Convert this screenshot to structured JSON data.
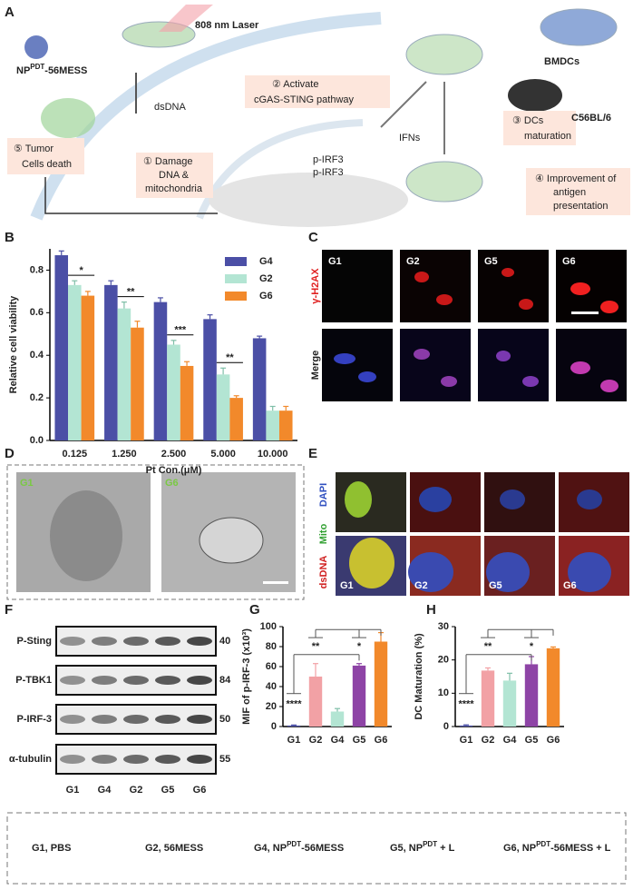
{
  "panel_labels": [
    "A",
    "B",
    "C",
    "D",
    "E",
    "F",
    "G",
    "H"
  ],
  "schematic": {
    "laser": "808 nm Laser",
    "np": {
      "base": "NP",
      "sup": "PDT",
      "tail": "-56MESS"
    },
    "dsdna": "dsDNA",
    "activate": [
      "② Activate",
      "cGAS-STING pathway"
    ],
    "bmdcs": "BMDCs",
    "mouse": "C56BL/6",
    "ifns": "IFNs",
    "maturation": [
      "③ DCs",
      "maturation"
    ],
    "death": [
      "⑤ Tumor",
      "Cells death"
    ],
    "damage": [
      "① Damage",
      "DNA &",
      "mitochondria"
    ],
    "pirf3": [
      "p-IRF3",
      "p-IRF3"
    ],
    "antigen": [
      "④ Improvement of",
      "antigen",
      "presentation"
    ]
  },
  "microscopy_c": {
    "columns": [
      "G1",
      "G2",
      "G5",
      "G6"
    ],
    "rows": [
      "γ-H2AX",
      "Merge"
    ]
  },
  "tem_d": {
    "labels": [
      "G1",
      "G6"
    ]
  },
  "confocal_e": {
    "rows": [
      "DAPI",
      "Mito",
      "dsDNA"
    ],
    "columns": [
      "G1",
      "G2",
      "G5",
      "G6"
    ]
  },
  "western_f": {
    "bands": [
      {
        "name": "P-Sting",
        "mw": 40
      },
      {
        "name": "P-TBK1",
        "mw": 84
      },
      {
        "name": "P-IRF-3",
        "mw": 50
      },
      {
        "name": "α-tubulin",
        "mw": 55
      }
    ],
    "lanes": [
      "G1",
      "G4",
      "G2",
      "G5",
      "G6"
    ]
  },
  "chart_data": [
    {
      "type": "bar",
      "ylabel": "Relative cell viability",
      "xlabel": "Pt Con.(μM)",
      "categories": [
        "0.125",
        "1.250",
        "2.500",
        "5.000",
        "10.000"
      ],
      "series": [
        {
          "name": "G4",
          "color": "#4b4fa6",
          "values": [
            0.87,
            0.73,
            0.65,
            0.57,
            0.48
          ],
          "errors": [
            0.02,
            0.02,
            0.02,
            0.02,
            0.01
          ]
        },
        {
          "name": "G2",
          "color": "#b3e5d3",
          "values": [
            0.73,
            0.62,
            0.45,
            0.31,
            0.14
          ],
          "errors": [
            0.02,
            0.03,
            0.02,
            0.03,
            0.02
          ]
        },
        {
          "name": "G6",
          "color": "#f2892b",
          "values": [
            0.68,
            0.53,
            0.35,
            0.2,
            0.14
          ],
          "errors": [
            0.02,
            0.03,
            0.02,
            0.01,
            0.02
          ]
        }
      ],
      "ylim": [
        0,
        0.9
      ],
      "yticks": [
        {
          "value": 0,
          "label": "0.0"
        },
        0.2,
        0.4,
        0.6,
        0.8
      ],
      "annotations": [
        "*",
        "**",
        "***",
        "**"
      ],
      "legend": "upper right"
    },
    {
      "type": "bar",
      "ylabel": "MIF of p-IRF-3 (x10³)",
      "categories": [
        "G1",
        "G2",
        "G4",
        "G5",
        "G6"
      ],
      "values": [
        1,
        50,
        15,
        61,
        85
      ],
      "errors": [
        0.5,
        13,
        3,
        2,
        9
      ],
      "colors": [
        "#4b4fa6",
        "#f2a1a5",
        "#b3e5d3",
        "#8e44a6",
        "#f2892b"
      ],
      "ylim": [
        0,
        100
      ],
      "yticks": [
        0,
        20,
        40,
        60,
        80,
        100
      ],
      "annotations": [
        "**",
        "*",
        "****"
      ]
    },
    {
      "type": "bar",
      "ylabel": "DC Maturation (%)",
      "categories": [
        "G1",
        "G2",
        "G4",
        "G5",
        "G6"
      ],
      "values": [
        0.3,
        16.8,
        13.8,
        18.7,
        23.5
      ],
      "errors": [
        0.2,
        0.8,
        2.2,
        2.3,
        0.4
      ],
      "colors": [
        "#4b4fa6",
        "#f2a1a5",
        "#b3e5d3",
        "#8e44a6",
        "#f2892b"
      ],
      "ylim": [
        0,
        30
      ],
      "yticks": [
        0,
        10,
        20,
        30
      ],
      "annotations": [
        "**",
        "*",
        "****"
      ]
    }
  ],
  "legend": [
    {
      "text": "G1, PBS"
    },
    {
      "text": "G2, 56MESS"
    },
    {
      "text": "G4, NP",
      "sup": "PDT",
      "tail": "-56MESS"
    },
    {
      "text": "G5, NP",
      "sup": "PDT",
      "tail": " + L"
    },
    {
      "text": "G6, NP",
      "sup": "PDT",
      "tail": "-56MESS + L"
    }
  ]
}
